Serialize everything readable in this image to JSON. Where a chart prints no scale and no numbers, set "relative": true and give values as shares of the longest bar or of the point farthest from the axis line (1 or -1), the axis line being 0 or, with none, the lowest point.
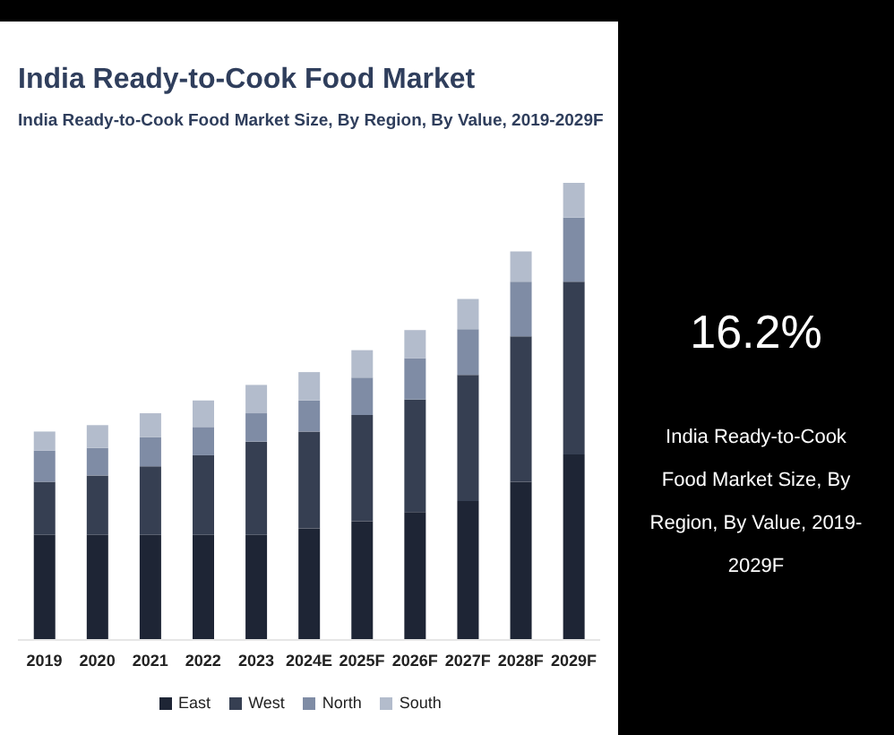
{
  "chart_data": [
    {
      "type": "bar",
      "title": "India Ready-to-Cook Food Market",
      "subtitle": "India Ready-to-Cook Food Market Size, By Region, By Value, 2019-2029F",
      "relative": true,
      "stacked": true,
      "legend": "bottom",
      "categories": [
        "2019",
        "2020",
        "2021",
        "2022",
        "2023",
        "2024E",
        "2025F",
        "2026F",
        "2027F",
        "2028F",
        "2029F"
      ],
      "series": [
        {
          "name": "East",
          "color": "#1e2535",
          "values": [
            0.23,
            0.23,
            0.23,
            0.23,
            0.23,
            0.244,
            0.26,
            0.28,
            0.304,
            0.346,
            0.406
          ]
        },
        {
          "name": "West",
          "color": "#363f52",
          "values": [
            0.116,
            0.13,
            0.15,
            0.174,
            0.204,
            0.212,
            0.232,
            0.246,
            0.276,
            0.318,
            0.378
          ]
        },
        {
          "name": "North",
          "color": "#7f8ca5",
          "values": [
            0.068,
            0.06,
            0.064,
            0.062,
            0.062,
            0.068,
            0.082,
            0.09,
            0.1,
            0.12,
            0.14
          ]
        },
        {
          "name": "South",
          "color": "#b3bccc",
          "values": [
            0.042,
            0.05,
            0.052,
            0.058,
            0.062,
            0.062,
            0.06,
            0.062,
            0.066,
            0.066,
            0.076
          ]
        }
      ]
    },
    {
      "type": "other",
      "title": "16.2%",
      "annotations": [
        "India Ready-to-Cook Food Market Size, By Region, By Value, 2019-2029F"
      ]
    }
  ]
}
